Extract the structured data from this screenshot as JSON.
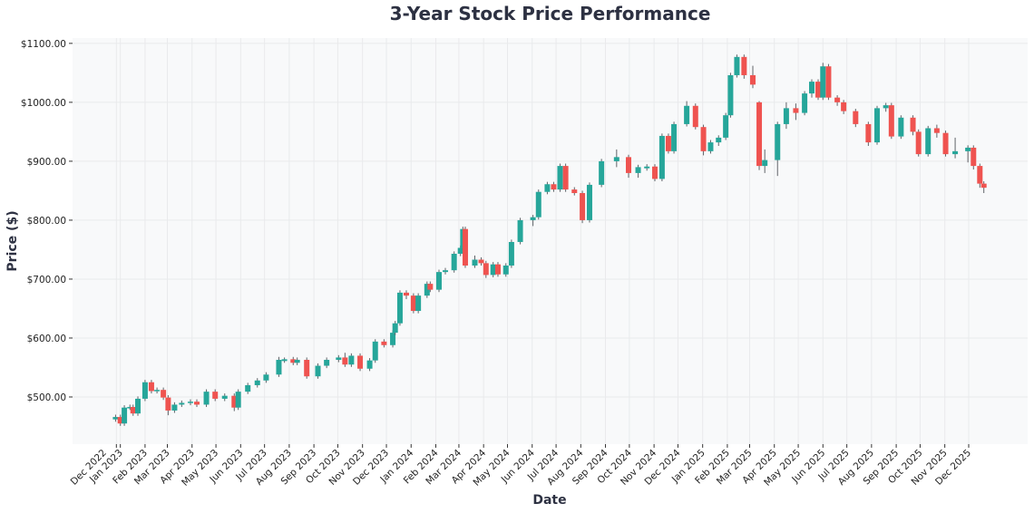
{
  "chart_data": {
    "type": "candlestick",
    "title": "3-Year Stock Price Performance",
    "xlabel": "Date",
    "ylabel": "Price ($)",
    "xlim": [
      "2022-11-02",
      "2026-02-13"
    ],
    "ylim": [
      420,
      1109
    ],
    "grid": true,
    "colors": {
      "up": "#26a69a",
      "down": "#ef5350",
      "wick": "#5f6368",
      "plot_bg": "#f8f9fa",
      "grid": "#e9eaec"
    },
    "y_ticks": [
      {
        "value": 500,
        "label": "$500.00"
      },
      {
        "value": 600,
        "label": "$600.00"
      },
      {
        "value": 700,
        "label": "$700.00"
      },
      {
        "value": 800,
        "label": "$800.00"
      },
      {
        "value": 900,
        "label": "$900.00"
      },
      {
        "value": 1000,
        "label": "$1000.00"
      },
      {
        "value": 1100,
        "label": "$1100.00"
      }
    ],
    "x_ticks": [
      {
        "date": "2022-12-27",
        "label": "Dec 2022"
      },
      {
        "date": "2023-01-01",
        "label": "Jan 2023"
      },
      {
        "date": "2023-02-01",
        "label": "Feb 2023"
      },
      {
        "date": "2023-03-01",
        "label": "Mar 2023"
      },
      {
        "date": "2023-04-01",
        "label": "Apr 2023"
      },
      {
        "date": "2023-05-01",
        "label": "May 2023"
      },
      {
        "date": "2023-06-01",
        "label": "Jun 2023"
      },
      {
        "date": "2023-07-01",
        "label": "Jul 2023"
      },
      {
        "date": "2023-08-01",
        "label": "Aug 2023"
      },
      {
        "date": "2023-09-01",
        "label": "Sep 2023"
      },
      {
        "date": "2023-10-01",
        "label": "Oct 2023"
      },
      {
        "date": "2023-11-01",
        "label": "Nov 2023"
      },
      {
        "date": "2023-12-01",
        "label": "Dec 2023"
      },
      {
        "date": "2024-01-01",
        "label": "Jan 2024"
      },
      {
        "date": "2024-02-01",
        "label": "Feb 2024"
      },
      {
        "date": "2024-03-01",
        "label": "Mar 2024"
      },
      {
        "date": "2024-04-01",
        "label": "Apr 2024"
      },
      {
        "date": "2024-05-01",
        "label": "May 2024"
      },
      {
        "date": "2024-06-01",
        "label": "Jun 2024"
      },
      {
        "date": "2024-07-01",
        "label": "Jul 2024"
      },
      {
        "date": "2024-08-01",
        "label": "Aug 2024"
      },
      {
        "date": "2024-09-01",
        "label": "Sep 2024"
      },
      {
        "date": "2024-10-01",
        "label": "Oct 2024"
      },
      {
        "date": "2024-11-01",
        "label": "Nov 2024"
      },
      {
        "date": "2024-12-01",
        "label": "Dec 2024"
      },
      {
        "date": "2025-01-01",
        "label": "Jan 2025"
      },
      {
        "date": "2025-02-01",
        "label": "Feb 2025"
      },
      {
        "date": "2025-03-01",
        "label": "Mar 2025"
      },
      {
        "date": "2025-04-01",
        "label": "Apr 2025"
      },
      {
        "date": "2025-05-01",
        "label": "May 2025"
      },
      {
        "date": "2025-06-01",
        "label": "Jun 2025"
      },
      {
        "date": "2025-07-01",
        "label": "Jul 2025"
      },
      {
        "date": "2025-08-01",
        "label": "Aug 2025"
      },
      {
        "date": "2025-09-01",
        "label": "Sep 2025"
      },
      {
        "date": "2025-10-01",
        "label": "Oct 2025"
      },
      {
        "date": "2025-11-01",
        "label": "Nov 2025"
      },
      {
        "date": "2025-12-01",
        "label": "Dec 2025"
      }
    ],
    "columns": [
      "date",
      "open",
      "high",
      "low",
      "close"
    ],
    "candles": [
      [
        "2022-12-26",
        462,
        470,
        458,
        466
      ],
      [
        "2023-01-01",
        466,
        470,
        451,
        455
      ],
      [
        "2023-01-06",
        455,
        486,
        451,
        482
      ],
      [
        "2023-01-13",
        482,
        487,
        478,
        483
      ],
      [
        "2023-01-17",
        483,
        487,
        468,
        472
      ],
      [
        "2023-01-23",
        472,
        501,
        468,
        497
      ],
      [
        "2023-02-01",
        497,
        529,
        493,
        525
      ],
      [
        "2023-02-09",
        525,
        529,
        506,
        510
      ],
      [
        "2023-02-16",
        510,
        516,
        506,
        512
      ],
      [
        "2023-02-24",
        512,
        516,
        495,
        499
      ],
      [
        "2023-03-02",
        499,
        503,
        469,
        477
      ],
      [
        "2023-03-10",
        477,
        491,
        473,
        487
      ],
      [
        "2023-03-19",
        487,
        494,
        483,
        490
      ],
      [
        "2023-03-30",
        490,
        496,
        486,
        492
      ],
      [
        "2023-04-07",
        492,
        496,
        483,
        487
      ],
      [
        "2023-04-19",
        487,
        513,
        483,
        509
      ],
      [
        "2023-04-30",
        509,
        513,
        493,
        497
      ],
      [
        "2023-05-12",
        497,
        506,
        493,
        502
      ],
      [
        "2023-05-24",
        502,
        506,
        476,
        482
      ],
      [
        "2023-05-29",
        482,
        513,
        478,
        509
      ],
      [
        "2023-06-10",
        509,
        524,
        505,
        520
      ],
      [
        "2023-06-22",
        520,
        532,
        516,
        528
      ],
      [
        "2023-07-03",
        528,
        542,
        524,
        538
      ],
      [
        "2023-07-19",
        538,
        568,
        534,
        563
      ],
      [
        "2023-07-26",
        561,
        567,
        558,
        564
      ],
      [
        "2023-08-06",
        564,
        568,
        554,
        558
      ],
      [
        "2023-08-11",
        558,
        567,
        554,
        563
      ],
      [
        "2023-08-23",
        563,
        567,
        531,
        535
      ],
      [
        "2023-09-06",
        535,
        557,
        531,
        553
      ],
      [
        "2023-09-17",
        553,
        567,
        549,
        563
      ],
      [
        "2023-10-02",
        563,
        571,
        559,
        567
      ],
      [
        "2023-10-10",
        567,
        575,
        551,
        555
      ],
      [
        "2023-10-18",
        555,
        574,
        551,
        570
      ],
      [
        "2023-10-29",
        570,
        574,
        544,
        548
      ],
      [
        "2023-11-10",
        548,
        566,
        544,
        562
      ],
      [
        "2023-11-17",
        562,
        598,
        558,
        594
      ],
      [
        "2023-11-28",
        594,
        598,
        584,
        588
      ],
      [
        "2023-12-09",
        588,
        613,
        584,
        609
      ],
      [
        "2023-12-12",
        609,
        629,
        605,
        625
      ],
      [
        "2023-12-18",
        625,
        681,
        621,
        677
      ],
      [
        "2023-12-26",
        677,
        681,
        666,
        672
      ],
      [
        "2024-01-04",
        672,
        676,
        642,
        646
      ],
      [
        "2024-01-10",
        646,
        676,
        642,
        672
      ],
      [
        "2024-01-21",
        672,
        696,
        668,
        692
      ],
      [
        "2024-01-25",
        692,
        696,
        678,
        682
      ],
      [
        "2024-02-05",
        682,
        716,
        678,
        712
      ],
      [
        "2024-02-13",
        712,
        719,
        708,
        715
      ],
      [
        "2024-02-24",
        715,
        747,
        711,
        743
      ],
      [
        "2024-03-03",
        743,
        757,
        739,
        753
      ],
      [
        "2024-03-06",
        753,
        789,
        749,
        785
      ],
      [
        "2024-03-09",
        785,
        789,
        719,
        723
      ],
      [
        "2024-03-21",
        723,
        740,
        719,
        733
      ],
      [
        "2024-03-29",
        733,
        737,
        723,
        727
      ],
      [
        "2024-04-04",
        727,
        731,
        702,
        707
      ],
      [
        "2024-04-13",
        707,
        729,
        703,
        725
      ],
      [
        "2024-04-19",
        725,
        729,
        704,
        708
      ],
      [
        "2024-04-29",
        708,
        727,
        704,
        723
      ],
      [
        "2024-05-06",
        723,
        767,
        719,
        763
      ],
      [
        "2024-05-17",
        763,
        804,
        759,
        800
      ],
      [
        "2024-06-02",
        800,
        809,
        790,
        805
      ],
      [
        "2024-06-09",
        805,
        852,
        801,
        848
      ],
      [
        "2024-06-20",
        848,
        865,
        844,
        861
      ],
      [
        "2024-06-28",
        861,
        865,
        848,
        852
      ],
      [
        "2024-07-06",
        852,
        896,
        848,
        892
      ],
      [
        "2024-07-13",
        892,
        896,
        848,
        852
      ],
      [
        "2024-07-24",
        852,
        856,
        842,
        846
      ],
      [
        "2024-08-03",
        846,
        850,
        795,
        800
      ],
      [
        "2024-08-12",
        800,
        864,
        796,
        860
      ],
      [
        "2024-08-27",
        860,
        904,
        856,
        900
      ],
      [
        "2024-09-15",
        900,
        920,
        890,
        907
      ],
      [
        "2024-09-30",
        907,
        911,
        872,
        880
      ],
      [
        "2024-10-12",
        880,
        894,
        872,
        890
      ],
      [
        "2024-10-23",
        888,
        895,
        884,
        891
      ],
      [
        "2024-11-02",
        891,
        895,
        866,
        870
      ],
      [
        "2024-11-11",
        870,
        947,
        866,
        943
      ],
      [
        "2024-11-19",
        943,
        947,
        913,
        917
      ],
      [
        "2024-11-26",
        917,
        967,
        913,
        963
      ],
      [
        "2024-12-12",
        963,
        1002,
        959,
        994
      ],
      [
        "2024-12-23",
        994,
        998,
        954,
        958
      ],
      [
        "2025-01-02",
        958,
        962,
        910,
        917
      ],
      [
        "2025-01-11",
        917,
        936,
        913,
        932
      ],
      [
        "2025-01-21",
        932,
        944,
        926,
        940
      ],
      [
        "2025-01-30",
        940,
        982,
        936,
        978
      ],
      [
        "2025-02-05",
        978,
        1050,
        974,
        1046
      ],
      [
        "2025-02-13",
        1046,
        1081,
        1042,
        1077
      ],
      [
        "2025-02-22",
        1077,
        1081,
        1040,
        1046
      ],
      [
        "2025-03-05",
        1046,
        1062,
        1024,
        1030
      ],
      [
        "2025-03-13",
        1000,
        1002,
        885,
        892
      ],
      [
        "2025-03-20",
        892,
        920,
        880,
        902
      ],
      [
        "2025-04-05",
        902,
        967,
        875,
        963
      ],
      [
        "2025-04-16",
        963,
        1000,
        955,
        990
      ],
      [
        "2025-04-28",
        990,
        998,
        970,
        982
      ],
      [
        "2025-05-09",
        982,
        1019,
        978,
        1015
      ],
      [
        "2025-05-18",
        1015,
        1039,
        1008,
        1035
      ],
      [
        "2025-05-26",
        1035,
        1039,
        1004,
        1008
      ],
      [
        "2025-06-01",
        1008,
        1067,
        1004,
        1061
      ],
      [
        "2025-06-08",
        1061,
        1065,
        1004,
        1008
      ],
      [
        "2025-06-19",
        1008,
        1012,
        994,
        1000
      ],
      [
        "2025-06-27",
        1000,
        1004,
        980,
        985
      ],
      [
        "2025-07-12",
        985,
        989,
        958,
        963
      ],
      [
        "2025-07-28",
        963,
        967,
        926,
        932
      ],
      [
        "2025-08-08",
        932,
        994,
        928,
        990
      ],
      [
        "2025-08-19",
        990,
        999,
        984,
        995
      ],
      [
        "2025-08-26",
        995,
        999,
        938,
        942
      ],
      [
        "2025-09-07",
        942,
        978,
        938,
        974
      ],
      [
        "2025-09-22",
        974,
        978,
        944,
        950
      ],
      [
        "2025-09-29",
        950,
        954,
        908,
        912
      ],
      [
        "2025-10-11",
        912,
        960,
        908,
        956
      ],
      [
        "2025-10-22",
        956,
        962,
        940,
        948
      ],
      [
        "2025-11-02",
        948,
        952,
        908,
        912
      ],
      [
        "2025-11-14",
        912,
        940,
        905,
        917
      ],
      [
        "2025-11-30",
        917,
        927,
        898,
        923
      ],
      [
        "2025-12-07",
        923,
        927,
        886,
        892
      ],
      [
        "2025-12-15",
        892,
        896,
        855,
        862
      ],
      [
        "2025-12-20",
        862,
        866,
        846,
        855
      ]
    ]
  }
}
